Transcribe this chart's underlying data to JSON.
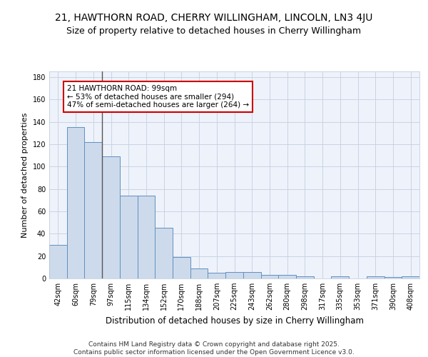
{
  "title1": "21, HAWTHORN ROAD, CHERRY WILLINGHAM, LINCOLN, LN3 4JU",
  "title2": "Size of property relative to detached houses in Cherry Willingham",
  "xlabel": "Distribution of detached houses by size in Cherry Willingham",
  "ylabel": "Number of detached properties",
  "categories": [
    "42sqm",
    "60sqm",
    "79sqm",
    "97sqm",
    "115sqm",
    "134sqm",
    "152sqm",
    "170sqm",
    "188sqm",
    "207sqm",
    "225sqm",
    "243sqm",
    "262sqm",
    "280sqm",
    "298sqm",
    "317sqm",
    "335sqm",
    "353sqm",
    "371sqm",
    "390sqm",
    "408sqm"
  ],
  "values": [
    30,
    135,
    122,
    109,
    74,
    74,
    45,
    19,
    9,
    5,
    6,
    6,
    3,
    3,
    2,
    0,
    2,
    0,
    2,
    1,
    2
  ],
  "bar_color": "#cddaeb",
  "bar_edge_color": "#6090c0",
  "annotation_text": "21 HAWTHORN ROAD: 99sqm\n← 53% of detached houses are smaller (294)\n47% of semi-detached houses are larger (264) →",
  "annotation_box_color": "#ffffff",
  "annotation_box_edge_color": "#cc0000",
  "vline_color": "#555555",
  "ylim": [
    0,
    185
  ],
  "yticks": [
    0,
    20,
    40,
    60,
    80,
    100,
    120,
    140,
    160,
    180
  ],
  "footer1": "Contains HM Land Registry data © Crown copyright and database right 2025.",
  "footer2": "Contains public sector information licensed under the Open Government Licence v3.0.",
  "bg_color": "#eef2fa",
  "grid_color": "#c5cfe0",
  "title1_fontsize": 10,
  "title2_fontsize": 9,
  "xlabel_fontsize": 8.5,
  "ylabel_fontsize": 8,
  "tick_fontsize": 7,
  "annot_fontsize": 7.5,
  "footer_fontsize": 6.5
}
